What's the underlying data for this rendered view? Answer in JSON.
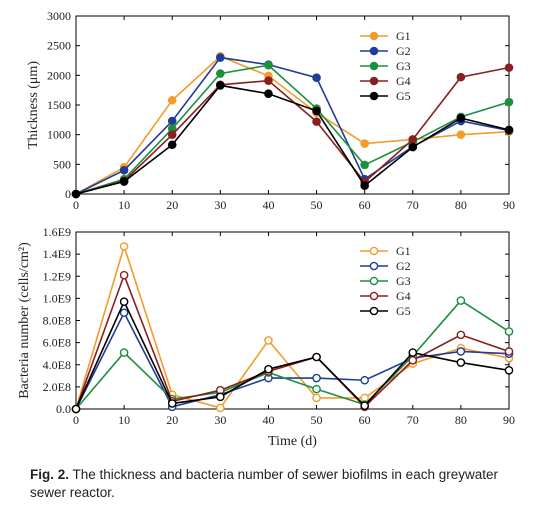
{
  "figure_label": "Fig. 2.",
  "caption_text": "The thickness and bacteria number of sewer biofilms in each greywater sewer reactor.",
  "colors": {
    "G1": "#f39c2b",
    "G2": "#1f3c96",
    "G3": "#1e8f3c",
    "G4": "#8b1e1e",
    "G5": "#000000"
  },
  "chart_data": [
    {
      "type": "line",
      "title": "",
      "xlabel": "",
      "ylabel": "Thickness (μm)",
      "xlim": [
        0,
        90
      ],
      "ylim": [
        0,
        3000
      ],
      "x_ticks": [
        "0",
        "10",
        "20",
        "30",
        "40",
        "50",
        "60",
        "70",
        "80",
        "90"
      ],
      "y_ticks": [
        "0",
        "500",
        "1000",
        "1500",
        "2000",
        "2500",
        "3000"
      ],
      "marker": "filled",
      "legend_position": "top-right",
      "x": [
        0,
        10,
        20,
        30,
        40,
        50,
        60,
        70,
        80,
        90
      ],
      "series": [
        {
          "name": "G1",
          "values": [
            0,
            450,
            1580,
            2320,
            1990,
            1370,
            850,
            920,
            1000,
            1050
          ]
        },
        {
          "name": "G2",
          "values": [
            0,
            400,
            1230,
            2300,
            2180,
            1960,
            250,
            800,
            1230,
            1070
          ]
        },
        {
          "name": "G3",
          "values": [
            0,
            250,
            1100,
            2030,
            2170,
            1440,
            490,
            880,
            1300,
            1550
          ]
        },
        {
          "name": "G4",
          "values": [
            0,
            220,
            1000,
            1840,
            1910,
            1220,
            200,
            920,
            1970,
            2130
          ]
        },
        {
          "name": "G5",
          "values": [
            0,
            210,
            830,
            1830,
            1690,
            1400,
            140,
            790,
            1280,
            1080
          ]
        }
      ]
    },
    {
      "type": "line",
      "title": "",
      "xlabel": "Time (d)",
      "ylabel": "Bacteria number (cells/cm²)",
      "xlim": [
        0,
        90
      ],
      "ylim": [
        0,
        1600000000.0
      ],
      "x_ticks": [
        "0",
        "10",
        "20",
        "30",
        "40",
        "50",
        "60",
        "70",
        "80",
        "90"
      ],
      "y_ticks": [
        "0.0",
        "2.0E8",
        "4.0E8",
        "6.0E8",
        "8.0E8",
        "1.0E9",
        "1.2E9",
        "1.4E9",
        "1.6E9"
      ],
      "marker": "open",
      "legend_position": "top-right",
      "x": [
        0,
        10,
        20,
        30,
        40,
        50,
        60,
        70,
        80,
        90
      ],
      "series": [
        {
          "name": "G1",
          "values": [
            0.0,
            1470000000.0,
            130000000.0,
            10000000.0,
            620000000.0,
            100000000.0,
            100000000.0,
            410000000.0,
            550000000.0,
            460000000.0
          ]
        },
        {
          "name": "G2",
          "values": [
            0.0,
            870000000.0,
            20000000.0,
            130000000.0,
            280000000.0,
            280000000.0,
            260000000.0,
            460000000.0,
            520000000.0,
            500000000.0
          ]
        },
        {
          "name": "G3",
          "values": [
            0.0,
            510000000.0,
            90000000.0,
            150000000.0,
            330000000.0,
            180000000.0,
            40000000.0,
            480000000.0,
            980000000.0,
            700000000.0
          ]
        },
        {
          "name": "G4",
          "values": [
            0.0,
            1210000000.0,
            70000000.0,
            170000000.0,
            340000000.0,
            470000000.0,
            20000000.0,
            440000000.0,
            670000000.0,
            520000000.0
          ]
        },
        {
          "name": "G5",
          "values": [
            0.0,
            970000000.0,
            50000000.0,
            110000000.0,
            360000000.0,
            470000000.0,
            30000000.0,
            510000000.0,
            420000000.0,
            350000000.0
          ]
        }
      ]
    }
  ]
}
